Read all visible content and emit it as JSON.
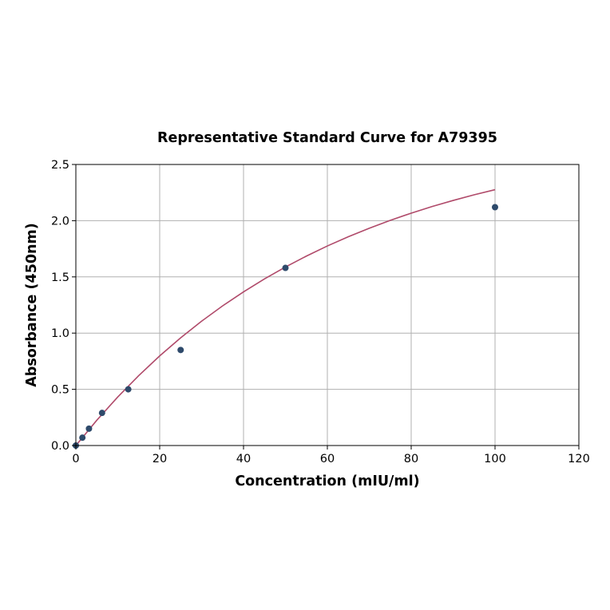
{
  "chart_data": {
    "type": "scatter",
    "title": "Representative Standard Curve for A79395",
    "xlabel": "Concentration (mIU/ml)",
    "ylabel": "Absorbance (450nm)",
    "xlim": [
      0,
      120
    ],
    "ylim": [
      0,
      2.5
    ],
    "xticks": [
      0,
      20,
      40,
      60,
      80,
      100,
      120
    ],
    "yticks": [
      0.0,
      0.5,
      1.0,
      1.5,
      2.0,
      2.5
    ],
    "xtick_labels": [
      "0",
      "20",
      "40",
      "60",
      "80",
      "100",
      "120"
    ],
    "ytick_labels": [
      "0.0",
      "0.5",
      "1.0",
      "1.5",
      "2.0",
      "2.5"
    ],
    "grid": true,
    "series": [
      {
        "kind": "points",
        "color": "#2e4a6b",
        "x": [
          0,
          1.56,
          3.13,
          6.25,
          12.5,
          25,
          50,
          100
        ],
        "y": [
          0.0,
          0.07,
          0.15,
          0.29,
          0.5,
          0.85,
          1.58,
          2.12
        ]
      },
      {
        "kind": "fit-curve",
        "color": "#b04a6a",
        "x": [
          0,
          5,
          10,
          15,
          20,
          25,
          30,
          35,
          40,
          45,
          50,
          55,
          60,
          65,
          70,
          75,
          80,
          85,
          90,
          95,
          100
        ],
        "y": [
          0.0,
          0.225,
          0.432,
          0.622,
          0.797,
          0.958,
          1.106,
          1.242,
          1.367,
          1.482,
          1.588,
          1.685,
          1.775,
          1.857,
          1.933,
          2.003,
          2.067,
          2.126,
          2.18,
          2.23,
          2.276
        ]
      }
    ]
  }
}
